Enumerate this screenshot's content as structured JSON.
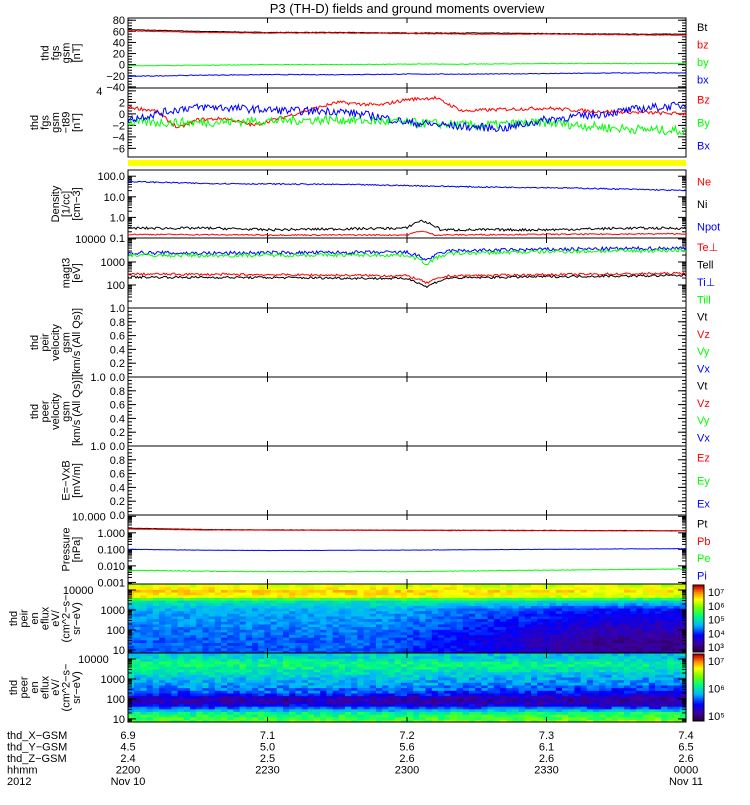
{
  "chart_data": {
    "type": "line",
    "title": "P3 (TH-D) fields and ground moments overview",
    "x_unit": "hours after 2200 UT, 2012 Nov 10",
    "xlim": [
      0,
      2
    ],
    "grid": false,
    "panels": [
      {
        "id": "fgs_gsm",
        "ylabel": [
          "thd",
          "fgs",
          "gsm",
          "[nT]"
        ],
        "scale": "linear",
        "ylim": [
          -42,
          84
        ],
        "yticks": [
          {
            "v": 80,
            "l": "80"
          },
          {
            "v": 60,
            "l": "60"
          },
          {
            "v": 40,
            "l": "40"
          },
          {
            "v": 20,
            "l": "20"
          },
          {
            "v": 0,
            "l": "0"
          },
          {
            "v": -20,
            "l": "−20"
          },
          {
            "v": -40,
            "l": "−40"
          }
        ],
        "series": [
          {
            "name": "Bt",
            "color": "#000000",
            "noise": 0.5,
            "x": [
              0,
              0.25,
              0.5,
              0.75,
              1,
              1.25,
              1.5,
              1.75,
              2
            ],
            "y": [
              63,
              60,
              58,
              58,
              57,
              57,
              56,
              55,
              55
            ]
          },
          {
            "name": "bz",
            "color": "#ff0000",
            "noise": 0.5,
            "x": [
              0,
              0.25,
              0.5,
              0.75,
              1,
              1.25,
              1.5,
              1.75,
              2
            ],
            "y": [
              61,
              58,
              57,
              57,
              56,
              55,
              55,
              54,
              53
            ]
          },
          {
            "name": "by",
            "color": "#00ff00",
            "noise": 0.6,
            "x": [
              0,
              0.25,
              0.5,
              0.75,
              1,
              1.25,
              1.5,
              1.75,
              2
            ],
            "y": [
              -2,
              -1,
              0,
              0,
              1,
              1,
              2,
              2,
              2
            ]
          },
          {
            "name": "bx",
            "color": "#0000ff",
            "noise": 0.6,
            "x": [
              0,
              0.25,
              0.5,
              0.75,
              1,
              1.25,
              1.5,
              1.75,
              2
            ],
            "y": [
              -21,
              -19,
              -18,
              -18,
              -17,
              -17,
              -16,
              -15,
              -15
            ]
          }
        ]
      },
      {
        "id": "fgs_gsm_t89",
        "ylabel": [
          "thd",
          "fgs",
          "gsm",
          "−t89",
          "[nT]"
        ],
        "scale": "linear",
        "ylim": [
          -7.5,
          4.5
        ],
        "yticks": [
          {
            "v": 4,
            "l": "4"
          },
          {
            "v": 2,
            "l": "2"
          },
          {
            "v": 0,
            "l": "0"
          },
          {
            "v": -2,
            "l": "−2"
          },
          {
            "v": -4,
            "l": "−4"
          },
          {
            "v": -6,
            "l": "−6"
          }
        ],
        "series": [
          {
            "name": "Bz",
            "color": "#ff0000",
            "noise": 0.3,
            "x": [
              0,
              0.1,
              0.18,
              0.25,
              0.35,
              0.45,
              0.6,
              0.75,
              0.9,
              1.0,
              1.1,
              1.2,
              1.35,
              1.5,
              1.65,
              1.8,
              2
            ],
            "y": [
              1.2,
              0.5,
              -2.5,
              -1,
              -0.8,
              -2,
              0,
              2,
              1.5,
              2.5,
              2.8,
              0.5,
              0.8,
              1,
              0.5,
              0.3,
              0
            ]
          },
          {
            "name": "By",
            "color": "#00ff00",
            "noise": 0.8,
            "x": [
              0,
              0.25,
              0.5,
              0.75,
              1,
              1.25,
              1.5,
              1.75,
              2
            ],
            "y": [
              -1.5,
              -1.5,
              -1.2,
              -1,
              -1.5,
              -2,
              -1.5,
              -2.5,
              -3
            ]
          },
          {
            "name": "Bx",
            "color": "#0000ff",
            "noise": 0.7,
            "x": [
              0,
              0.1,
              0.2,
              0.3,
              0.45,
              0.6,
              0.75,
              0.9,
              1.0,
              1.2,
              1.35,
              1.5,
              1.7,
              1.85,
              2
            ],
            "y": [
              -1,
              0,
              1,
              1.2,
              0.8,
              0.5,
              0.5,
              -0.5,
              -1.5,
              -2.2,
              -2.5,
              -1,
              0,
              1,
              1.5
            ]
          }
        ]
      },
      {
        "id": "density",
        "ylabel": [
          "Density",
          "[1/cc]",
          "[cm−3]"
        ],
        "scale": "log",
        "ylim": [
          0.1,
          200
        ],
        "yticks": [
          {
            "v": 100,
            "l": "100.0"
          },
          {
            "v": 10,
            "l": "10.0"
          },
          {
            "v": 1,
            "l": "1.0"
          },
          {
            "v": 0.1,
            "l": "0.1"
          }
        ],
        "series": [
          {
            "name": "Ne",
            "color": "#ff0000",
            "noise": 0.03,
            "x": [
              0,
              0.5,
              1.0,
              1.05,
              1.1,
              1.5,
              2
            ],
            "y": [
              0.15,
              0.14,
              0.14,
              0.22,
              0.14,
              0.15,
              0.16
            ]
          },
          {
            "name": "Ni",
            "color": "#000000",
            "noise": 0.06,
            "x": [
              0,
              0.3,
              0.5,
              1.0,
              1.05,
              1.12,
              1.5,
              1.8,
              2
            ],
            "y": [
              0.3,
              0.3,
              0.25,
              0.3,
              0.7,
              0.25,
              0.25,
              0.3,
              0.3
            ]
          },
          {
            "name": "Npot",
            "color": "#0000ff",
            "noise": 0.03,
            "x": [
              0,
              0.25,
              0.5,
              0.75,
              1,
              1.25,
              1.5,
              1.75,
              2
            ],
            "y": [
              55,
              45,
              42,
              40,
              35,
              30,
              28,
              24,
              20
            ]
          }
        ]
      },
      {
        "id": "magt3",
        "ylabel": [
          "magt3",
          "[eV]"
        ],
        "scale": "log",
        "ylim": [
          10,
          11000
        ],
        "yticks": [
          {
            "v": 10000,
            "l": "10000"
          },
          {
            "v": 1000,
            "l": "1000"
          },
          {
            "v": 100,
            "l": "100"
          }
        ],
        "series": [
          {
            "name": "Te⊥",
            "color": "#ff0000",
            "noise": 0.05,
            "x": [
              0,
              0.5,
              1.0,
              1.07,
              1.15,
              1.5,
              2
            ],
            "y": [
              300,
              280,
              250,
              120,
              250,
              280,
              320
            ]
          },
          {
            "name": "Tell",
            "color": "#000000",
            "noise": 0.05,
            "x": [
              0,
              0.5,
              1.0,
              1.07,
              1.15,
              1.5,
              2
            ],
            "y": [
              220,
              210,
              190,
              80,
              200,
              230,
              260
            ]
          },
          {
            "name": "Ti⊥",
            "color": "#0000ff",
            "noise": 0.08,
            "x": [
              0,
              0.3,
              0.5,
              1.0,
              1.07,
              1.15,
              1.5,
              2
            ],
            "y": [
              2500,
              2400,
              2500,
              2600,
              1200,
              3000,
              3500,
              4000
            ]
          },
          {
            "name": "Till",
            "color": "#00ff00",
            "noise": 0.08,
            "x": [
              0,
              0.3,
              0.5,
              1.0,
              1.07,
              1.15,
              1.5,
              2
            ],
            "y": [
              2000,
              1900,
              2000,
              2000,
              800,
              2300,
              2800,
              3200
            ]
          }
        ]
      },
      {
        "id": "peir_velocity",
        "ylabel": [
          "thd",
          "peir",
          "velocity",
          "gsm",
          "[km/s (All Qs)]"
        ],
        "scale": "linear",
        "ylim": [
          0,
          1
        ],
        "yticks": [
          {
            "v": 1,
            "l": "1.0"
          },
          {
            "v": 0.8,
            "l": "0.8"
          },
          {
            "v": 0.6,
            "l": "0.6"
          },
          {
            "v": 0.4,
            "l": "0.4"
          },
          {
            "v": 0.2,
            "l": "0.2"
          },
          {
            "v": 0,
            "l": "0.0"
          }
        ],
        "legend": [
          {
            "name": "Vt",
            "color": "#000000"
          },
          {
            "name": "Vz",
            "color": "#ff0000"
          },
          {
            "name": "Vy",
            "color": "#00ff00"
          },
          {
            "name": "Vx",
            "color": "#0000ff"
          }
        ],
        "series": []
      },
      {
        "id": "peer_velocity",
        "ylabel": [
          "thd",
          "peer",
          "velocity",
          "gsm",
          "[km/s (All Qs)]"
        ],
        "scale": "linear",
        "ylim": [
          0,
          1
        ],
        "yticks": [
          {
            "v": 1,
            "l": "1.0"
          },
          {
            "v": 0.8,
            "l": "0.8"
          },
          {
            "v": 0.6,
            "l": "0.6"
          },
          {
            "v": 0.4,
            "l": "0.4"
          },
          {
            "v": 0.2,
            "l": "0.2"
          },
          {
            "v": 0,
            "l": "0.0"
          }
        ],
        "legend": [
          {
            "name": "Vt",
            "color": "#000000"
          },
          {
            "name": "Vz",
            "color": "#ff0000"
          },
          {
            "name": "Vy",
            "color": "#00ff00"
          },
          {
            "name": "Vx",
            "color": "#0000ff"
          }
        ],
        "series": []
      },
      {
        "id": "e_vxb",
        "ylabel": [
          "E=−VxB",
          "[mV/m]"
        ],
        "scale": "linear",
        "ylim": [
          0,
          1
        ],
        "yticks": [
          {
            "v": 1,
            "l": "1.0"
          },
          {
            "v": 0.8,
            "l": "0.8"
          },
          {
            "v": 0.6,
            "l": "0.6"
          },
          {
            "v": 0.4,
            "l": "0.4"
          },
          {
            "v": 0.2,
            "l": "0.2"
          },
          {
            "v": 0,
            "l": "0.0"
          }
        ],
        "legend": [
          {
            "name": "Ez",
            "color": "#ff0000"
          },
          {
            "name": "Ey",
            "color": "#00ff00"
          },
          {
            "name": "Ex",
            "color": "#0000ff"
          }
        ],
        "series": []
      },
      {
        "id": "pressure",
        "ylabel": [
          "Pressure",
          "[nPa]"
        ],
        "scale": "log",
        "ylim": [
          0.0008,
          12
        ],
        "yticks": [
          {
            "v": 10,
            "l": "10.000"
          },
          {
            "v": 1,
            "l": "1.000"
          },
          {
            "v": 0.1,
            "l": "0.100"
          },
          {
            "v": 0.01,
            "l": "0.010"
          },
          {
            "v": 0.001,
            "l": "0.001"
          }
        ],
        "series": [
          {
            "name": "Pt",
            "color": "#000000",
            "noise": 0.01,
            "x": [
              0,
              0.25,
              0.5,
              1,
              1.5,
              2
            ],
            "y": [
              1.9,
              1.6,
              1.5,
              1.45,
              1.4,
              1.35
            ]
          },
          {
            "name": "Pb",
            "color": "#ff0000",
            "noise": 0.01,
            "x": [
              0,
              0.25,
              0.5,
              1,
              1.5,
              2
            ],
            "y": [
              1.7,
              1.5,
              1.45,
              1.4,
              1.35,
              1.3
            ]
          },
          {
            "name": "Pe",
            "color": "#00ff00",
            "noise": 0.02,
            "x": [
              0,
              0.25,
              0.5,
              1,
              1.5,
              2
            ],
            "y": [
              0.0055,
              0.0048,
              0.0045,
              0.0045,
              0.0055,
              0.0065
            ]
          },
          {
            "name": "Pi",
            "color": "#0000ff",
            "noise": 0.01,
            "x": [
              0,
              0.25,
              0.5,
              1,
              1.5,
              2
            ],
            "y": [
              0.1,
              0.09,
              0.085,
              0.09,
              0.1,
              0.11
            ]
          }
        ]
      }
    ],
    "spectrograms": [
      {
        "id": "peir_spectrogram",
        "ylabel": [
          "thd",
          "peir",
          "en",
          "eflux",
          "eV/",
          "(cm^2−s−",
          "sr−eV)"
        ],
        "scale": "log",
        "ylim": [
          7,
          20000
        ],
        "yticks": [
          {
            "v": 10000,
            "l": "10000"
          },
          {
            "v": 1000,
            "l": "1000"
          },
          {
            "v": 100,
            "l": "100"
          },
          {
            "v": 10,
            "l": "10"
          }
        ],
        "energy_eV": [
          10,
          30,
          100,
          300,
          1000,
          3000,
          5000,
          10000,
          15000
        ],
        "log_eflux_start": [
          4.3,
          4.3,
          4.4,
          4.5,
          4.6,
          5.0,
          6.2,
          6.4,
          6.1
        ],
        "log_eflux_end": [
          3.4,
          3.4,
          3.6,
          3.8,
          4.0,
          4.8,
          6.0,
          6.3,
          6.0
        ],
        "colorbar": {
          "labels": [
            "10⁷",
            "10⁶",
            "10⁵",
            "10⁴",
            "10³"
          ],
          "range_log": [
            3,
            7
          ]
        }
      },
      {
        "id": "peer_spectrogram",
        "ylabel": [
          "thd",
          "peer",
          "en",
          "eflux",
          "eV/",
          "(cm^2−s−",
          "sr−eV)"
        ],
        "scale": "log",
        "ylim": [
          7,
          20000
        ],
        "yticks": [
          {
            "v": 10000,
            "l": "10000"
          },
          {
            "v": 1000,
            "l": "1000"
          },
          {
            "v": 100,
            "l": "100"
          },
          {
            "v": 10,
            "l": "10"
          }
        ],
        "energy_eV": [
          10,
          20,
          50,
          100,
          200,
          500,
          1000,
          3000,
          6000,
          12000
        ],
        "log_eflux_start": [
          6.6,
          6.4,
          5.6,
          5.3,
          5.8,
          6.0,
          6.1,
          6.3,
          6.5,
          6.2
        ],
        "log_eflux_end": [
          6.7,
          6.5,
          5.5,
          5.3,
          5.6,
          5.9,
          6.0,
          6.2,
          6.4,
          6.1
        ],
        "colorbar": {
          "labels": [
            "10⁷",
            "10⁶",
            "10⁵"
          ],
          "range_log": [
            5,
            7.6
          ]
        }
      }
    ],
    "x_axis_rows": [
      {
        "label": "thd_X−GSM",
        "values": [
          "6.9",
          "7.1",
          "7.2",
          "7.3",
          "7.4"
        ]
      },
      {
        "label": "thd_Y−GSM",
        "values": [
          "4.5",
          "5.0",
          "5.6",
          "6.1",
          "6.5"
        ]
      },
      {
        "label": "thd_Z−GSM",
        "values": [
          "2.4",
          "2.5",
          "2.6",
          "2.6",
          "2.6"
        ]
      },
      {
        "label": "hhmm",
        "values": [
          "2200",
          "2230",
          "2300",
          "2330",
          "0000"
        ]
      },
      {
        "label": "2012",
        "values": [
          "Nov 10",
          "",
          "",
          "",
          "Nov 11"
        ]
      }
    ]
  }
}
